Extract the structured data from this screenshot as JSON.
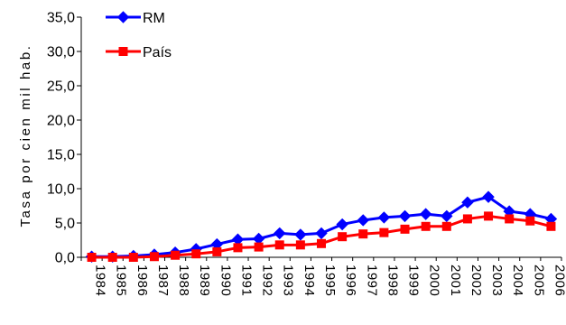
{
  "chart_data": {
    "type": "line",
    "title": "",
    "xlabel": "",
    "ylabel": "Tasa por cien mil hab.",
    "ylim": [
      0,
      35
    ],
    "yticks": [
      "0,0",
      "5,0",
      "10,0",
      "15,0",
      "20,0",
      "25,0",
      "30,0",
      "35,0"
    ],
    "categories": [
      "1984",
      "1985",
      "1986",
      "1987",
      "1988",
      "1989",
      "1990",
      "1991",
      "1992",
      "1993",
      "1994",
      "1995",
      "1996",
      "1997",
      "1998",
      "1999",
      "2000",
      "2001",
      "2002",
      "2003",
      "2004",
      "2005",
      "2006"
    ],
    "grid": false,
    "legend_position": "top-left",
    "series": [
      {
        "name": "RM",
        "color": "#0000ff",
        "marker": "diamond",
        "values": [
          0.1,
          0.1,
          0.2,
          0.4,
          0.7,
          1.2,
          1.9,
          2.6,
          2.7,
          3.5,
          3.3,
          3.5,
          4.8,
          5.4,
          5.8,
          6.0,
          6.3,
          6.0,
          8.0,
          8.8,
          6.7,
          6.3,
          5.6
        ]
      },
      {
        "name": "País",
        "color": "#ff0000",
        "marker": "square",
        "values": [
          0.0,
          0.0,
          0.0,
          0.1,
          0.3,
          0.5,
          0.8,
          1.4,
          1.5,
          1.8,
          1.8,
          2.0,
          3.0,
          3.4,
          3.6,
          4.1,
          4.5,
          4.5,
          5.6,
          6.0,
          5.6,
          5.3,
          4.5
        ]
      }
    ]
  }
}
